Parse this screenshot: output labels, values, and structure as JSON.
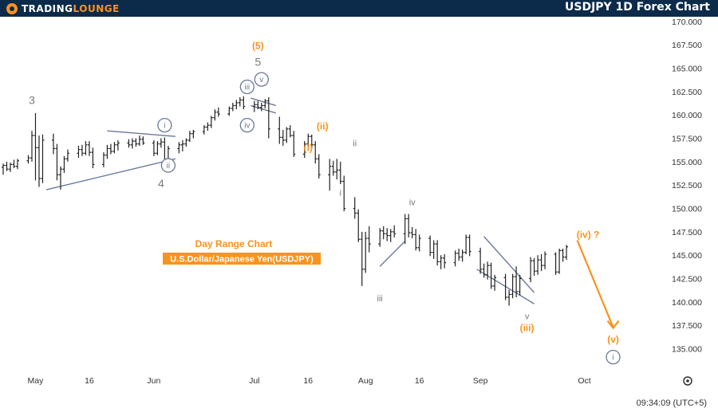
{
  "header": {
    "brand_part1": "TRADING",
    "brand_part2": "LOUNGE",
    "title": "USDJPY 1D Forex Chart"
  },
  "colors": {
    "header_bg": "#0c2a4a",
    "accent": "#f7931e",
    "wave_blue": "#6b7a99",
    "wave_gray": "#7a7a7a",
    "bar": "#222222",
    "channel": "#6b7a99"
  },
  "icons": {
    "settings": "gear-icon"
  },
  "footer": {
    "time": "09:34:09 (UTC+5)"
  },
  "chart_data": {
    "type": "ohlc",
    "title": "Day Range Chart",
    "subtitle": "U.S.Dollar/Japanese Yen(USDJPY)",
    "ylim": [
      133,
      170.5
    ],
    "xlim": [
      "2024-04-22",
      "2024-10-24"
    ],
    "y_ticks": [
      "135.000",
      "137.500",
      "140.000",
      "142.500",
      "145.000",
      "147.500",
      "150.000",
      "152.500",
      "155.000",
      "157.500",
      "160.000",
      "162.500",
      "165.000",
      "167.500",
      "170.000"
    ],
    "x_ticks": [
      {
        "date": "2024-05-01",
        "label": "May"
      },
      {
        "date": "2024-05-16",
        "label": "16"
      },
      {
        "date": "2024-06-03",
        "label": "Jun"
      },
      {
        "date": "2024-07-01",
        "label": "Jul"
      },
      {
        "date": "2024-07-16",
        "label": "16"
      },
      {
        "date": "2024-08-01",
        "label": "Aug"
      },
      {
        "date": "2024-08-16",
        "label": "16"
      },
      {
        "date": "2024-09-02",
        "label": "Sep"
      },
      {
        "date": "2024-10-01",
        "label": "Oct"
      }
    ],
    "bars_ohlc": [
      [
        154.4,
        154.8,
        153.6,
        154.6
      ],
      [
        154.6,
        155.0,
        154.0,
        154.2
      ],
      [
        154.2,
        154.9,
        153.9,
        154.7
      ],
      [
        154.7,
        155.2,
        154.3,
        154.5
      ],
      [
        154.5,
        155.3,
        154.2,
        155.1
      ],
      [
        155.1,
        155.7,
        154.8,
        155.4
      ],
      [
        155.4,
        158.3,
        155.0,
        157.8
      ],
      [
        157.8,
        160.2,
        153.0,
        156.5
      ],
      [
        156.5,
        157.8,
        152.3,
        153.2
      ],
      [
        153.2,
        157.9,
        152.7,
        157.3
      ],
      [
        157.3,
        158.0,
        155.8,
        156.4
      ],
      [
        156.4,
        156.9,
        153.0,
        153.6
      ],
      [
        153.6,
        154.5,
        152.0,
        154.2
      ],
      [
        154.2,
        155.6,
        153.8,
        155.3
      ],
      [
        155.3,
        156.3,
        155.0,
        155.9
      ],
      [
        155.9,
        156.7,
        155.4,
        156.3
      ],
      [
        156.3,
        156.8,
        155.6,
        155.9
      ],
      [
        155.9,
        157.2,
        155.7,
        156.8
      ],
      [
        156.8,
        157.2,
        155.6,
        156.0
      ],
      [
        156.0,
        156.5,
        154.3,
        154.7
      ],
      [
        154.7,
        156.0,
        154.4,
        155.7
      ],
      [
        155.7,
        156.8,
        155.3,
        156.4
      ],
      [
        156.4,
        156.9,
        155.8,
        156.1
      ],
      [
        156.1,
        157.1,
        155.9,
        156.8
      ],
      [
        156.8,
        157.3,
        156.2,
        157.0
      ],
      [
        157.0,
        157.4,
        156.5,
        156.8
      ],
      [
        156.8,
        157.5,
        156.4,
        157.2
      ],
      [
        157.2,
        157.5,
        156.6,
        156.9
      ],
      [
        156.9,
        157.8,
        156.7,
        157.4
      ],
      [
        157.4,
        157.7,
        156.8,
        157.0
      ],
      [
        157.0,
        157.3,
        155.6,
        155.9
      ],
      [
        155.9,
        157.2,
        155.7,
        156.9
      ],
      [
        156.9,
        157.5,
        156.5,
        157.1
      ],
      [
        157.1,
        157.6,
        154.6,
        155.0
      ],
      [
        155.0,
        156.7,
        154.8,
        156.4
      ],
      [
        156.4,
        157.1,
        155.9,
        156.8
      ],
      [
        156.8,
        157.3,
        156.1,
        156.9
      ],
      [
        156.9,
        157.5,
        156.6,
        157.3
      ],
      [
        157.3,
        158.3,
        157.1,
        158.0
      ],
      [
        158.0,
        158.4,
        157.5,
        158.2
      ],
      [
        158.2,
        158.9,
        157.9,
        158.7
      ],
      [
        158.7,
        159.2,
        158.3,
        158.9
      ],
      [
        158.9,
        159.9,
        158.6,
        159.7
      ],
      [
        159.7,
        160.6,
        159.4,
        160.3
      ],
      [
        160.3,
        160.8,
        159.8,
        160.1
      ],
      [
        160.1,
        160.9,
        159.9,
        160.7
      ],
      [
        160.7,
        161.3,
        160.4,
        161.0
      ],
      [
        161.0,
        161.6,
        160.6,
        161.3
      ],
      [
        161.3,
        161.9,
        160.9,
        161.6
      ],
      [
        161.6,
        162.0,
        160.6,
        160.9
      ],
      [
        160.9,
        161.5,
        160.3,
        161.1
      ],
      [
        161.1,
        161.5,
        160.6,
        160.8
      ],
      [
        160.8,
        161.3,
        160.4,
        161.0
      ],
      [
        161.0,
        161.7,
        160.7,
        161.5
      ],
      [
        161.5,
        161.9,
        157.5,
        158.5
      ],
      [
        158.5,
        159.8,
        156.9,
        157.6
      ],
      [
        157.6,
        158.4,
        156.7,
        157.3
      ],
      [
        157.3,
        158.7,
        157.0,
        158.5
      ],
      [
        158.5,
        158.9,
        157.6,
        157.8
      ],
      [
        157.8,
        158.3,
        155.5,
        155.8
      ],
      [
        155.8,
        157.2,
        155.4,
        156.9
      ],
      [
        156.9,
        158.0,
        156.5,
        157.7
      ],
      [
        157.7,
        157.9,
        156.4,
        156.8
      ],
      [
        156.8,
        157.2,
        154.8,
        155.3
      ],
      [
        155.3,
        155.8,
        153.2,
        153.6
      ],
      [
        153.6,
        155.3,
        151.9,
        154.5
      ],
      [
        154.5,
        155.1,
        153.5,
        153.9
      ],
      [
        153.9,
        155.3,
        153.1,
        154.1
      ],
      [
        154.1,
        155.0,
        152.6,
        152.9
      ],
      [
        152.9,
        153.5,
        149.7,
        150.0
      ],
      [
        150.0,
        151.2,
        148.9,
        149.5
      ],
      [
        149.5,
        149.9,
        146.4,
        146.7
      ],
      [
        146.7,
        147.5,
        141.7,
        143.5
      ],
      [
        143.5,
        147.5,
        143.1,
        146.8
      ],
      [
        146.8,
        148.1,
        145.3,
        146.2
      ],
      [
        146.2,
        147.9,
        145.9,
        147.6
      ],
      [
        147.6,
        148.1,
        146.7,
        147.3
      ],
      [
        147.3,
        147.9,
        146.5,
        147.1
      ],
      [
        147.1,
        147.8,
        146.4,
        147.5
      ],
      [
        147.5,
        148.2,
        146.9,
        147.3
      ],
      [
        147.3,
        149.4,
        146.2,
        148.9
      ],
      [
        148.9,
        149.4,
        146.9,
        147.4
      ],
      [
        147.4,
        148.0,
        146.8,
        147.2
      ],
      [
        147.2,
        147.8,
        145.5,
        145.8
      ],
      [
        145.8,
        147.2,
        145.4,
        146.8
      ],
      [
        146.8,
        147.1,
        144.9,
        145.3
      ],
      [
        145.3,
        146.6,
        144.6,
        146.2
      ],
      [
        146.2,
        146.6,
        143.9,
        144.3
      ],
      [
        144.3,
        145.0,
        143.5,
        144.7
      ],
      [
        144.7,
        145.1,
        143.6,
        144.2
      ],
      [
        144.2,
        145.5,
        143.8,
        145.2
      ],
      [
        145.2,
        145.7,
        144.4,
        144.8
      ],
      [
        144.8,
        145.6,
        144.3,
        145.3
      ],
      [
        145.3,
        147.2,
        145.1,
        146.9
      ],
      [
        146.9,
        147.2,
        144.9,
        145.4
      ],
      [
        145.4,
        145.8,
        143.0,
        143.5
      ],
      [
        143.5,
        144.1,
        142.6,
        142.9
      ],
      [
        142.9,
        144.3,
        142.4,
        143.9
      ],
      [
        143.9,
        144.2,
        141.4,
        141.7
      ],
      [
        141.7,
        142.9,
        141.2,
        142.6
      ],
      [
        142.6,
        143.0,
        140.2,
        140.5
      ],
      [
        140.5,
        141.3,
        139.6,
        140.8
      ],
      [
        140.8,
        143.0,
        140.4,
        142.7
      ],
      [
        142.7,
        143.8,
        140.5,
        141.1
      ],
      [
        141.1,
        142.9,
        140.7,
        142.5
      ],
      [
        142.5,
        144.8,
        142.1,
        144.4
      ],
      [
        144.4,
        144.7,
        142.8,
        143.3
      ],
      [
        143.3,
        145.0,
        142.9,
        144.5
      ],
      [
        144.5,
        145.1,
        143.3,
        143.9
      ],
      [
        143.9,
        145.4,
        143.5,
        145.1
      ],
      [
        145.1,
        145.3,
        142.9,
        143.2
      ],
      [
        143.2,
        145.7,
        143.0,
        145.5
      ],
      [
        145.5,
        145.7,
        144.3,
        144.8
      ],
      [
        144.8,
        146.1,
        144.5,
        145.9
      ]
    ],
    "annotations": [
      {
        "id": "3",
        "label": "3",
        "style": "text",
        "color": "gray",
        "date": "2024-04-30",
        "y": 161.5
      },
      {
        "id": "i1",
        "label": "i",
        "style": "circle",
        "color": "blue",
        "date": "2024-06-06",
        "y": 158.9
      },
      {
        "id": "ii1",
        "label": "ii",
        "style": "circle",
        "color": "blue",
        "date": "2024-06-07",
        "y": 154.6
      },
      {
        "id": "4",
        "label": "4",
        "style": "text",
        "color": "gray",
        "date": "2024-06-05",
        "y": 152.6
      },
      {
        "id": "iii1",
        "label": "iii",
        "style": "circle",
        "color": "blue",
        "date": "2024-06-29",
        "y": 163.0
      },
      {
        "id": "iv1",
        "label": "iv",
        "style": "circle",
        "color": "blue",
        "date": "2024-06-29",
        "y": 158.9
      },
      {
        "id": "v1",
        "label": "v",
        "style": "circle",
        "color": "blue",
        "date": "2024-07-03",
        "y": 163.8
      },
      {
        "id": "5",
        "label": "5",
        "style": "text",
        "color": "gray",
        "date": "2024-07-02",
        "y": 165.6
      },
      {
        "id": "w5",
        "label": "(5)",
        "style": "text",
        "color": "orange",
        "date": "2024-07-02",
        "y": 167.4
      },
      {
        "id": "oi",
        "label": "(i)",
        "style": "text",
        "color": "orange",
        "date": "2024-07-16",
        "y": 156.5
      },
      {
        "id": "oii",
        "label": "(ii)",
        "style": "text",
        "color": "orange",
        "date": "2024-07-20",
        "y": 158.8
      },
      {
        "id": "gi",
        "label": "i",
        "style": "text",
        "color": "gray",
        "date": "2024-07-25",
        "y": 151.7
      },
      {
        "id": "gii",
        "label": "ii",
        "style": "text",
        "color": "gray",
        "date": "2024-07-29",
        "y": 157.0
      },
      {
        "id": "giii",
        "label": "iii",
        "style": "text",
        "color": "gray",
        "date": "2024-08-05",
        "y": 140.4
      },
      {
        "id": "giv",
        "label": "iv",
        "style": "text",
        "color": "gray",
        "date": "2024-08-14",
        "y": 150.7
      },
      {
        "id": "gv",
        "label": "v",
        "style": "text",
        "color": "gray",
        "date": "2024-09-15",
        "y": 138.5
      },
      {
        "id": "oiii",
        "label": "(iii)",
        "style": "text",
        "color": "orange",
        "date": "2024-09-15",
        "y": 137.2
      },
      {
        "id": "oiv",
        "label": "(iv) ?",
        "style": "text",
        "color": "orange",
        "date": "2024-10-02",
        "y": 147.2
      },
      {
        "id": "ov",
        "label": "(v)",
        "style": "text",
        "color": "orange",
        "date": "2024-10-09",
        "y": 136.0
      },
      {
        "id": "ci",
        "label": "i",
        "style": "circle",
        "color": "blue",
        "date": "2024-10-09",
        "y": 134.1
      }
    ],
    "projection": [
      {
        "date": "2024-09-29",
        "y": 146.6
      },
      {
        "date": "2024-10-09",
        "y": 137.3
      }
    ],
    "trendlines": [
      {
        "from": {
          "date": "2024-05-04",
          "y": 152.0
        },
        "to": {
          "date": "2024-06-09",
          "y": 155.3
        }
      },
      {
        "from": {
          "date": "2024-05-21",
          "y": 158.3
        },
        "to": {
          "date": "2024-06-09",
          "y": 157.7
        }
      },
      {
        "from": {
          "date": "2024-06-30",
          "y": 161.8
        },
        "to": {
          "date": "2024-07-07",
          "y": 161.0
        }
      },
      {
        "from": {
          "date": "2024-06-30",
          "y": 161.0
        },
        "to": {
          "date": "2024-07-07",
          "y": 160.2
        }
      },
      {
        "from": {
          "date": "2024-09-03",
          "y": 147.0
        },
        "to": {
          "date": "2024-09-17",
          "y": 141.0
        }
      },
      {
        "from": {
          "date": "2024-09-01",
          "y": 143.5
        },
        "to": {
          "date": "2024-09-17",
          "y": 139.8
        }
      },
      {
        "from": {
          "date": "2024-08-05",
          "y": 143.8
        },
        "to": {
          "date": "2024-08-12",
          "y": 146.5
        }
      }
    ]
  }
}
